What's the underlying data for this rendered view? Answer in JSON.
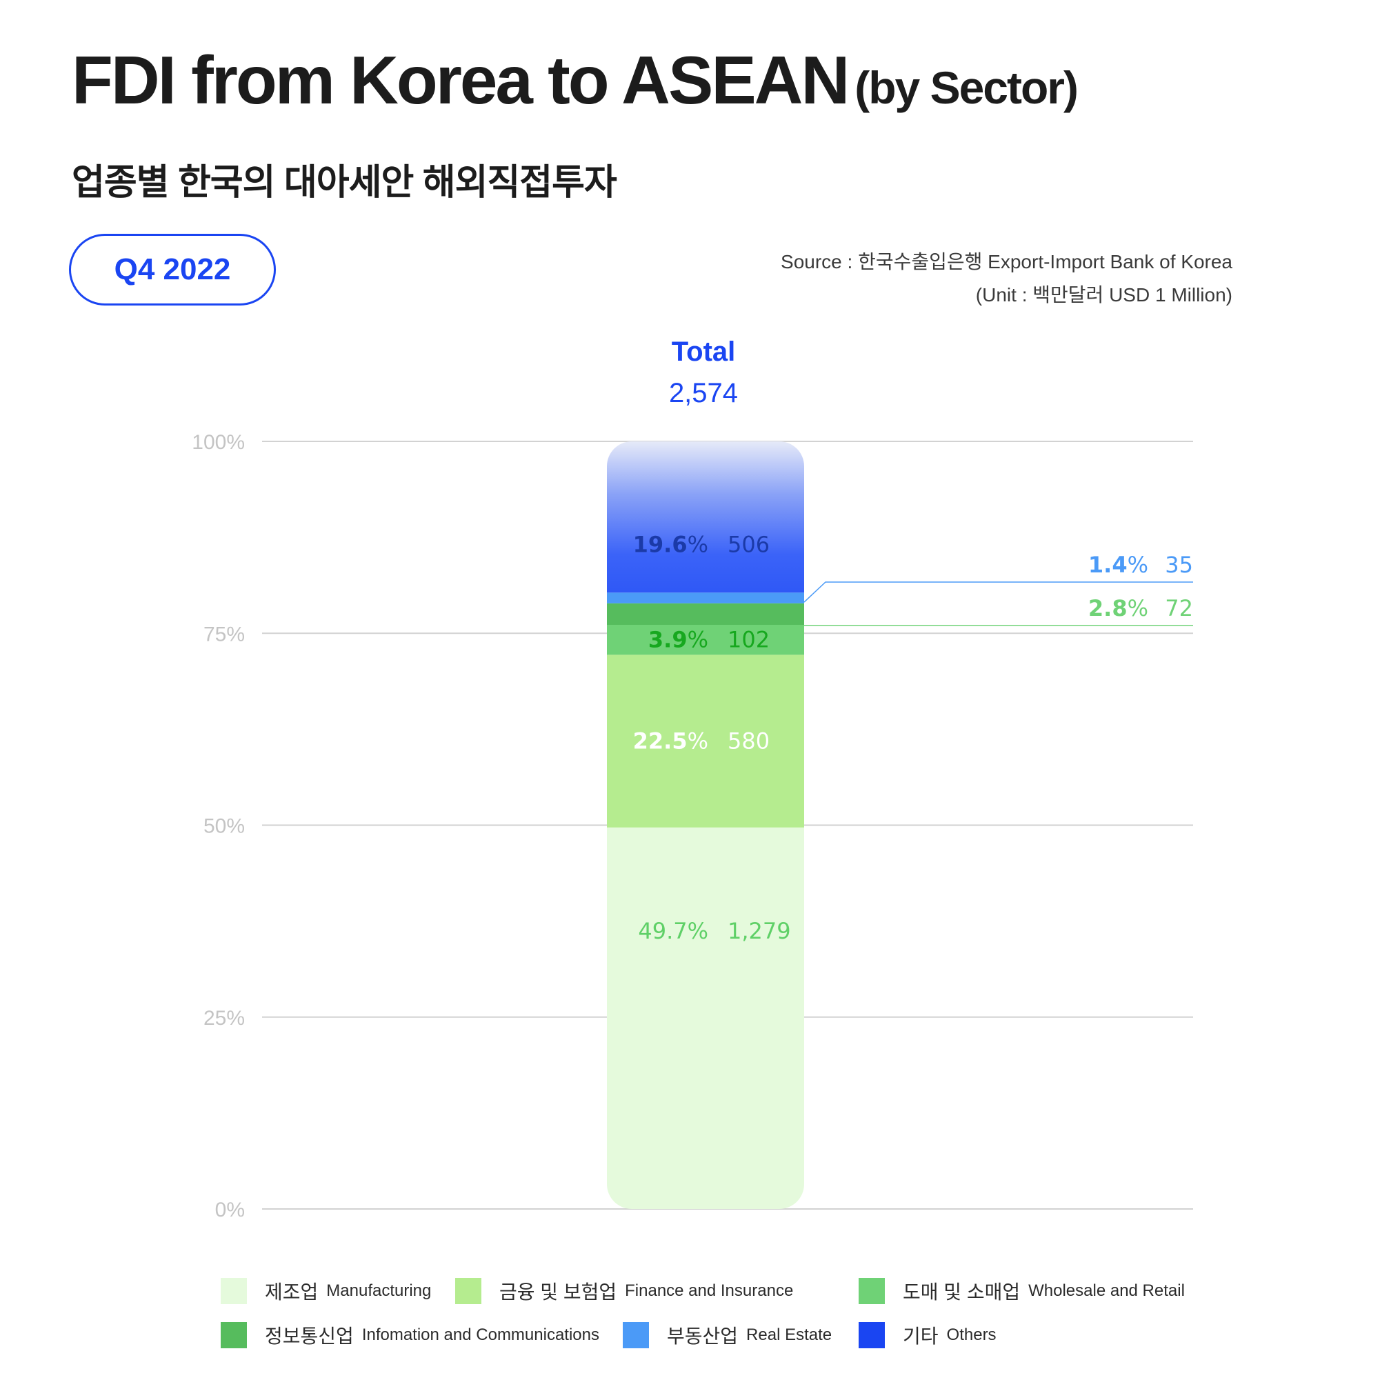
{
  "header": {
    "title": "FDI from Korea to ASEAN",
    "title_suffix": "(by Sector)",
    "subtitle_ko": "업종별 한국의 대아세안 해외직접투자",
    "period": "Q4 2022",
    "source": "Source :  한국수출입은행 Export-Import Bank of Korea",
    "unit": "(Unit : 백만달러 USD 1 Million)"
  },
  "total": {
    "label": "Total",
    "value": "2,574"
  },
  "chart_data": {
    "type": "bar",
    "stacked": true,
    "title": "FDI from Korea to ASEAN (by Sector)",
    "categories": [
      "Q4 2022"
    ],
    "total": 2574,
    "ylim": [
      0,
      100
    ],
    "yticks": [
      "0%",
      "25%",
      "50%",
      "75%",
      "100%"
    ],
    "grid": true,
    "legend_position": "bottom",
    "series": [
      {
        "name": "제조업 Manufacturing",
        "percent": 49.7,
        "pct_label": "49.7%",
        "value": 1279,
        "value_label": "1,279",
        "color": "#e5fadc",
        "text_color": "#5fd067",
        "pct_bold": false,
        "callout": false
      },
      {
        "name": "금융 및 보험업 Finance and Insurance",
        "percent": 22.5,
        "pct_label": "22.5",
        "value": 580,
        "value_label": "580",
        "color": "#b5ec8f",
        "text_color": "#ffffff",
        "pct_bold": true,
        "callout": false
      },
      {
        "name": "도매 및 소매업 Wholesale and Retail",
        "percent": 3.9,
        "pct_label": "3.9",
        "value": 102,
        "value_label": "102",
        "color": "#6fd276",
        "text_color": "#17a81f",
        "pct_bold": true,
        "callout": false
      },
      {
        "name": "정보통신업 Infomation and Communications",
        "percent": 2.8,
        "pct_label": "2.8",
        "value": 72,
        "value_label": "72",
        "color": "#56bc5d",
        "text_color": "#6fd276",
        "pct_bold": true,
        "callout": true
      },
      {
        "name": "부동산업 Real Estate",
        "percent": 1.4,
        "pct_label": "1.4",
        "value": 35,
        "value_label": "35",
        "color": "#4b9af7",
        "text_color": "#4b9af7",
        "pct_bold": true,
        "callout": true
      },
      {
        "name": "기타 Others",
        "percent": 19.6,
        "pct_label": "19.6",
        "value": 506,
        "value_label": "506",
        "color": "#1a45f2",
        "text_color": "#1b3aa8",
        "pct_bold": true,
        "callout": false
      }
    ]
  },
  "legend": [
    {
      "ko": "제조업",
      "en": "Manufacturing",
      "color": "#e5fadc"
    },
    {
      "ko": "금융 및 보험업",
      "en": "Finance and  Insurance",
      "color": "#b5ec8f"
    },
    {
      "ko": "도매 및 소매업",
      "en": "Wholesale and Retail",
      "color": "#6fd276"
    },
    {
      "ko": "정보통신업",
      "en": "Infomation and Communications",
      "color": "#56bc5d"
    },
    {
      "ko": "부동산업",
      "en": "Real Estate",
      "color": "#4b9af7"
    },
    {
      "ko": "기타",
      "en": "Others",
      "color": "#1a45f2"
    }
  ]
}
